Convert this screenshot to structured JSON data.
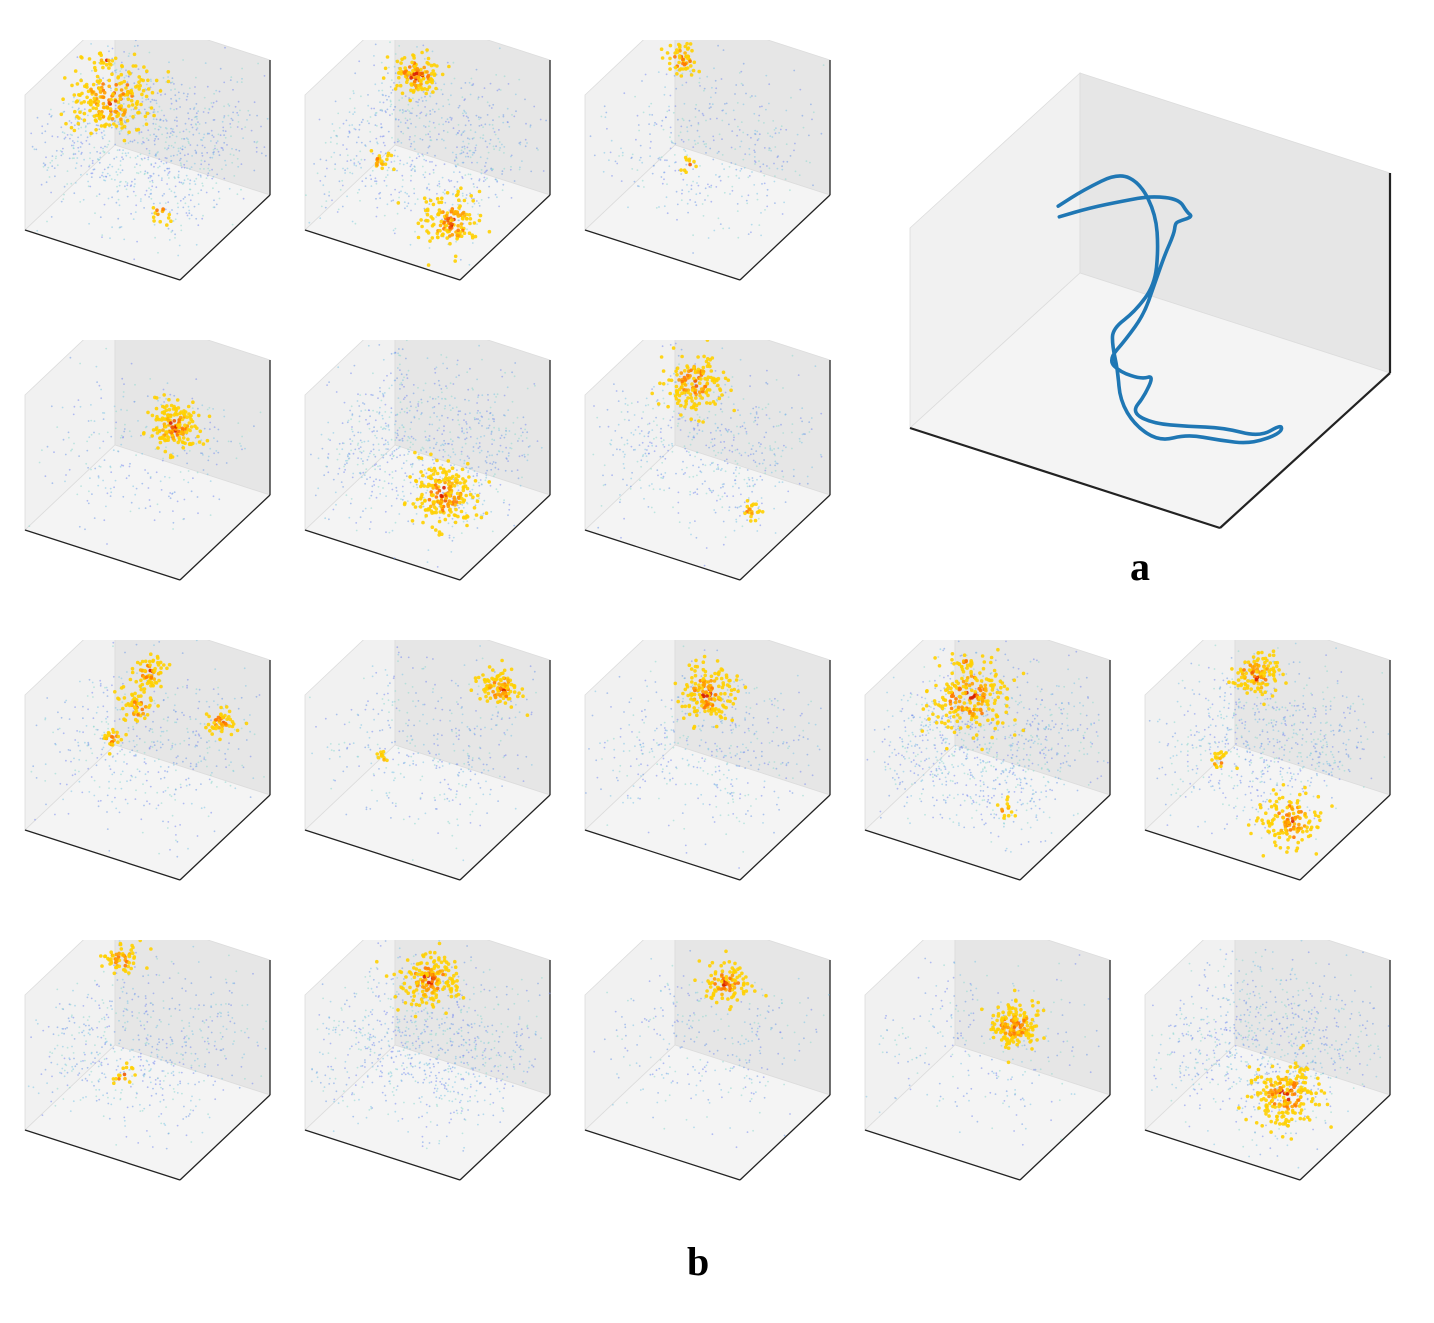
{
  "labels": {
    "a": "a",
    "b": "b"
  },
  "colors": {
    "pane_back": "#f1f1f1",
    "pane_side": "#e6e6e6",
    "pane_floor": "#f4f4f4",
    "pane_edge": "#dcdcdc",
    "axis_line": "#222222",
    "trajectory": "#1f77b4",
    "low_cloud": [
      "#7a8cf0",
      "#6f9ae8",
      "#7fc7e6",
      "#8fd9d0"
    ],
    "high_cloud": [
      "#ff9f00",
      "#ffb400",
      "#ff7a00",
      "#ffd000",
      "#f05a00",
      "#d92000"
    ]
  },
  "chart_data": [
    {
      "id": "a",
      "type": "line3d",
      "title": "",
      "grid": false,
      "axes_ticks": false,
      "series": [
        {
          "name": "",
          "points": [
            [
              0.18,
              0.55,
              0.72
            ],
            [
              0.25,
              0.6,
              0.76
            ],
            [
              0.35,
              0.62,
              0.83
            ],
            [
              0.45,
              0.6,
              0.92
            ],
            [
              0.55,
              0.58,
              0.97
            ],
            [
              0.62,
              0.5,
              1.0
            ],
            [
              0.66,
              0.46,
              1.03
            ],
            [
              0.6,
              0.48,
              0.96
            ],
            [
              0.57,
              0.52,
              0.9
            ],
            [
              0.55,
              0.55,
              0.82
            ],
            [
              0.52,
              0.55,
              0.7
            ],
            [
              0.5,
              0.52,
              0.55
            ],
            [
              0.48,
              0.5,
              0.42
            ],
            [
              0.45,
              0.45,
              0.32
            ],
            [
              0.42,
              0.4,
              0.24
            ],
            [
              0.47,
              0.38,
              0.22
            ],
            [
              0.55,
              0.36,
              0.24
            ],
            [
              0.6,
              0.34,
              0.3
            ],
            [
              0.58,
              0.32,
              0.2
            ],
            [
              0.55,
              0.3,
              0.12
            ],
            [
              0.62,
              0.3,
              0.1
            ],
            [
              0.72,
              0.32,
              0.12
            ],
            [
              0.82,
              0.35,
              0.14
            ],
            [
              0.92,
              0.38,
              0.12
            ],
            [
              0.97,
              0.42,
              0.18
            ],
            [
              0.95,
              0.45,
              0.1
            ],
            [
              0.88,
              0.4,
              0.05
            ],
            [
              0.8,
              0.36,
              0.06
            ],
            [
              0.72,
              0.32,
              0.08
            ],
            [
              0.64,
              0.3,
              0.02
            ],
            [
              0.55,
              0.32,
              0.04
            ],
            [
              0.48,
              0.36,
              0.1
            ],
            [
              0.44,
              0.42,
              0.18
            ],
            [
              0.4,
              0.46,
              0.26
            ],
            [
              0.38,
              0.5,
              0.3
            ],
            [
              0.42,
              0.56,
              0.36
            ],
            [
              0.46,
              0.6,
              0.48
            ],
            [
              0.45,
              0.64,
              0.62
            ],
            [
              0.42,
              0.68,
              0.75
            ],
            [
              0.36,
              0.7,
              0.86
            ],
            [
              0.3,
              0.68,
              0.9
            ],
            [
              0.22,
              0.62,
              0.82
            ],
            [
              0.16,
              0.58,
              0.74
            ]
          ]
        }
      ]
    },
    {
      "id": "b",
      "type": "scatter3d",
      "title": "",
      "grid": false,
      "axes_ticks": false,
      "panels": [
        {
          "blobs": [
            {
              "x": 0.3,
              "y": 0.45,
              "z": 0.8,
              "r": 0.11,
              "n": 230
            },
            {
              "x": 0.2,
              "y": 0.55,
              "z": 0.98,
              "r": 0.02,
              "n": 10
            },
            {
              "x": 0.7,
              "y": 0.3,
              "z": 0.2,
              "r": 0.03,
              "n": 14
            }
          ],
          "background": 900
        },
        {
          "blobs": [
            {
              "x": 0.4,
              "y": 0.55,
              "z": 0.95,
              "r": 0.07,
              "n": 120
            },
            {
              "x": 0.8,
              "y": 0.25,
              "z": 0.2,
              "r": 0.08,
              "n": 140
            },
            {
              "x": 0.25,
              "y": 0.4,
              "z": 0.35,
              "r": 0.03,
              "n": 20
            }
          ],
          "background": 700
        },
        {
          "blobs": [
            {
              "x": 0.25,
              "y": 0.65,
              "z": 0.95,
              "r": 0.05,
              "n": 55
            },
            {
              "x": 0.45,
              "y": 0.4,
              "z": 0.4,
              "r": 0.02,
              "n": 10
            }
          ],
          "background": 400
        },
        {
          "blobs": [
            {
              "x": 0.62,
              "y": 0.6,
              "z": 0.62,
              "r": 0.07,
              "n": 170
            }
          ],
          "background": 260
        },
        {
          "blobs": [
            {
              "x": 0.7,
              "y": 0.35,
              "z": 0.3,
              "r": 0.09,
              "n": 210
            }
          ],
          "background": 800
        },
        {
          "blobs": [
            {
              "x": 0.35,
              "y": 0.6,
              "z": 0.85,
              "r": 0.08,
              "n": 160
            },
            {
              "x": 0.85,
              "y": 0.4,
              "z": 0.2,
              "r": 0.03,
              "n": 20
            }
          ],
          "background": 550
        },
        {
          "blobs": [
            {
              "x": 0.45,
              "y": 0.6,
              "z": 0.95,
              "r": 0.05,
              "n": 70
            },
            {
              "x": 0.4,
              "y": 0.55,
              "z": 0.7,
              "r": 0.05,
              "n": 60
            },
            {
              "x": 0.95,
              "y": 0.55,
              "z": 0.8,
              "r": 0.04,
              "n": 50
            },
            {
              "x": 0.3,
              "y": 0.45,
              "z": 0.5,
              "r": 0.03,
              "n": 25
            }
          ],
          "background": 450
        },
        {
          "blobs": [
            {
              "x": 0.85,
              "y": 0.7,
              "z": 0.92,
              "r": 0.06,
              "n": 110
            },
            {
              "x": 0.25,
              "y": 0.45,
              "z": 0.35,
              "r": 0.02,
              "n": 10
            }
          ],
          "background": 380
        },
        {
          "blobs": [
            {
              "x": 0.45,
              "y": 0.6,
              "z": 0.8,
              "r": 0.08,
              "n": 170
            }
          ],
          "background": 450
        },
        {
          "blobs": [
            {
              "x": 0.38,
              "y": 0.52,
              "z": 0.8,
              "r": 0.11,
              "n": 230
            },
            {
              "x": 0.3,
              "y": 0.6,
              "z": 0.98,
              "r": 0.02,
              "n": 10
            },
            {
              "x": 0.7,
              "y": 0.35,
              "z": 0.2,
              "r": 0.03,
              "n": 14
            }
          ],
          "background": 900
        },
        {
          "blobs": [
            {
              "x": 0.4,
              "y": 0.55,
              "z": 0.95,
              "r": 0.07,
              "n": 120
            },
            {
              "x": 0.8,
              "y": 0.25,
              "z": 0.2,
              "r": 0.08,
              "n": 140
            },
            {
              "x": 0.25,
              "y": 0.4,
              "z": 0.35,
              "r": 0.03,
              "n": 20
            }
          ],
          "background": 700
        },
        {
          "blobs": [
            {
              "x": 0.25,
              "y": 0.65,
              "z": 0.95,
              "r": 0.05,
              "n": 60
            },
            {
              "x": 0.4,
              "y": 0.4,
              "z": 0.3,
              "r": 0.03,
              "n": 15
            }
          ],
          "background": 600
        },
        {
          "blobs": [
            {
              "x": 0.45,
              "y": 0.6,
              "z": 0.9,
              "r": 0.08,
              "n": 180
            }
          ],
          "background": 850
        },
        {
          "blobs": [
            {
              "x": 0.55,
              "y": 0.62,
              "z": 0.9,
              "r": 0.06,
              "n": 100
            }
          ],
          "background": 300
        },
        {
          "blobs": [
            {
              "x": 0.62,
              "y": 0.6,
              "z": 0.62,
              "r": 0.07,
              "n": 170
            }
          ],
          "background": 260
        },
        {
          "blobs": [
            {
              "x": 0.7,
              "y": 0.35,
              "z": 0.3,
              "r": 0.09,
              "n": 210
            }
          ],
          "background": 800
        }
      ]
    }
  ]
}
